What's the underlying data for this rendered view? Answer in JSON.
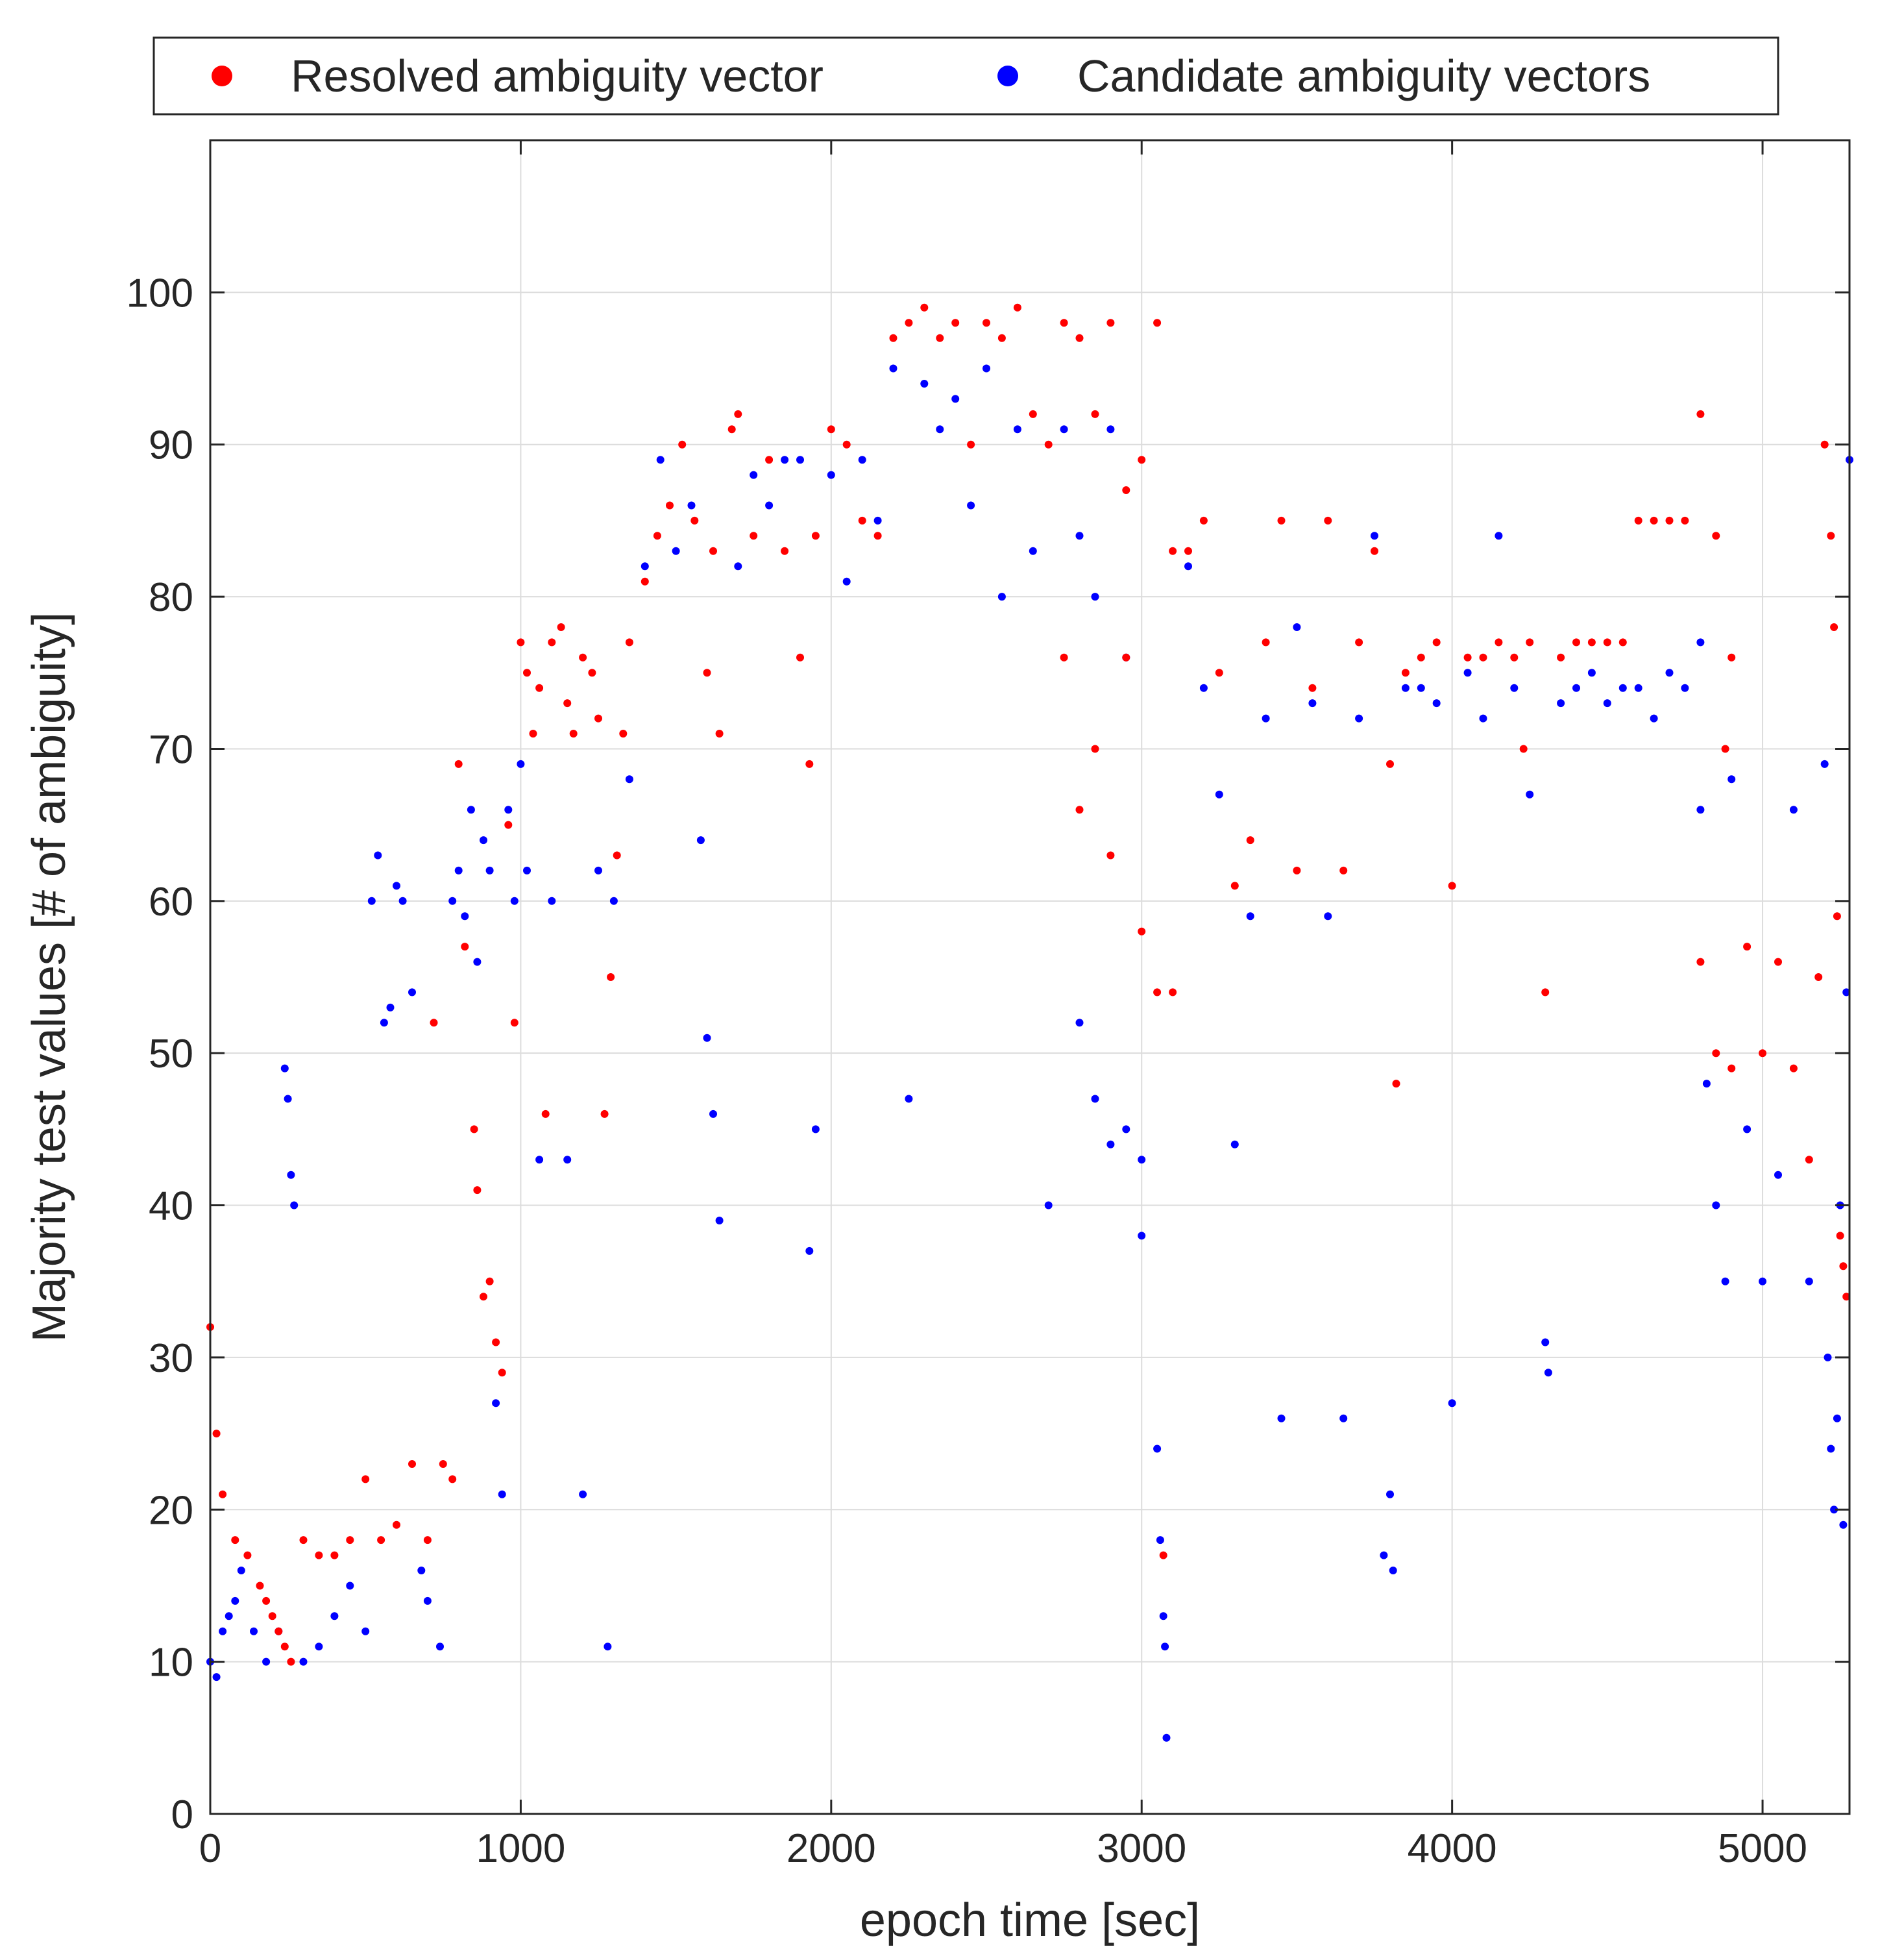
{
  "chart_data": {
    "type": "scatter",
    "title": "",
    "xlabel": "epoch time [sec]",
    "ylabel": "Majority test values [# of ambiguity]",
    "xlim": [
      0,
      5280
    ],
    "ylim": [
      0,
      110
    ],
    "xticks": [
      0,
      1000,
      2000,
      3000,
      4000,
      5000
    ],
    "yticks": [
      0,
      10,
      20,
      30,
      40,
      50,
      60,
      70,
      80,
      90,
      100
    ],
    "grid": true,
    "legend": {
      "position": "top-outside",
      "orientation": "horizontal"
    },
    "colors": {
      "resolved": "#ff0000",
      "candidate": "#0000ff",
      "grid": "#dcdcdc",
      "axis": "#262626"
    },
    "series": [
      {
        "name": "Resolved ambiguity vector",
        "color": "#ff0000",
        "points": [
          [
            0,
            32
          ],
          [
            20,
            25
          ],
          [
            40,
            21
          ],
          [
            80,
            18
          ],
          [
            120,
            17
          ],
          [
            160,
            15
          ],
          [
            180,
            14
          ],
          [
            200,
            13
          ],
          [
            220,
            12
          ],
          [
            240,
            11
          ],
          [
            260,
            10
          ],
          [
            300,
            18
          ],
          [
            350,
            17
          ],
          [
            400,
            17
          ],
          [
            450,
            18
          ],
          [
            500,
            22
          ],
          [
            550,
            18
          ],
          [
            600,
            19
          ],
          [
            650,
            23
          ],
          [
            700,
            18
          ],
          [
            720,
            52
          ],
          [
            750,
            23
          ],
          [
            780,
            22
          ],
          [
            800,
            69
          ],
          [
            820,
            57
          ],
          [
            850,
            45
          ],
          [
            860,
            41
          ],
          [
            880,
            34
          ],
          [
            900,
            35
          ],
          [
            920,
            31
          ],
          [
            940,
            29
          ],
          [
            960,
            65
          ],
          [
            980,
            52
          ],
          [
            1000,
            77
          ],
          [
            1020,
            75
          ],
          [
            1040,
            71
          ],
          [
            1060,
            74
          ],
          [
            1080,
            46
          ],
          [
            1100,
            77
          ],
          [
            1130,
            78
          ],
          [
            1150,
            73
          ],
          [
            1170,
            71
          ],
          [
            1200,
            76
          ],
          [
            1230,
            75
          ],
          [
            1250,
            72
          ],
          [
            1270,
            46
          ],
          [
            1290,
            55
          ],
          [
            1310,
            63
          ],
          [
            1330,
            71
          ],
          [
            1350,
            77
          ],
          [
            1400,
            81
          ],
          [
            1440,
            84
          ],
          [
            1480,
            86
          ],
          [
            1520,
            90
          ],
          [
            1560,
            85
          ],
          [
            1600,
            75
          ],
          [
            1620,
            83
          ],
          [
            1640,
            71
          ],
          [
            1680,
            91
          ],
          [
            1700,
            92
          ],
          [
            1750,
            84
          ],
          [
            1800,
            89
          ],
          [
            1850,
            83
          ],
          [
            1900,
            76
          ],
          [
            1930,
            69
          ],
          [
            1950,
            84
          ],
          [
            2000,
            91
          ],
          [
            2050,
            90
          ],
          [
            2100,
            85
          ],
          [
            2150,
            84
          ],
          [
            2200,
            97
          ],
          [
            2250,
            98
          ],
          [
            2300,
            99
          ],
          [
            2350,
            97
          ],
          [
            2400,
            98
          ],
          [
            2450,
            90
          ],
          [
            2500,
            98
          ],
          [
            2550,
            97
          ],
          [
            2600,
            99
          ],
          [
            2650,
            92
          ],
          [
            2700,
            90
          ],
          [
            2750,
            98
          ],
          [
            2800,
            97
          ],
          [
            2850,
            92
          ],
          [
            2900,
            98
          ],
          [
            2950,
            87
          ],
          [
            3000,
            89
          ],
          [
            3050,
            98
          ],
          [
            3100,
            83
          ],
          [
            2750,
            76
          ],
          [
            2800,
            66
          ],
          [
            2850,
            70
          ],
          [
            2900,
            63
          ],
          [
            2950,
            76
          ],
          [
            3000,
            58
          ],
          [
            3050,
            54
          ],
          [
            3100,
            54
          ],
          [
            3070,
            17
          ],
          [
            3150,
            83
          ],
          [
            3200,
            85
          ],
          [
            3250,
            75
          ],
          [
            3300,
            61
          ],
          [
            3350,
            64
          ],
          [
            3400,
            77
          ],
          [
            3450,
            85
          ],
          [
            3500,
            62
          ],
          [
            3550,
            74
          ],
          [
            3600,
            85
          ],
          [
            3650,
            62
          ],
          [
            3700,
            77
          ],
          [
            3750,
            83
          ],
          [
            3800,
            69
          ],
          [
            3820,
            48
          ],
          [
            3850,
            75
          ],
          [
            3900,
            76
          ],
          [
            3950,
            77
          ],
          [
            4000,
            61
          ],
          [
            4050,
            76
          ],
          [
            4100,
            76
          ],
          [
            4150,
            77
          ],
          [
            4200,
            76
          ],
          [
            4230,
            70
          ],
          [
            4250,
            77
          ],
          [
            4300,
            54
          ],
          [
            4350,
            76
          ],
          [
            4400,
            77
          ],
          [
            4450,
            77
          ],
          [
            4500,
            77
          ],
          [
            4550,
            77
          ],
          [
            4600,
            85
          ],
          [
            4650,
            85
          ],
          [
            4700,
            85
          ],
          [
            4750,
            85
          ],
          [
            4800,
            92
          ],
          [
            4850,
            84
          ],
          [
            4900,
            76
          ],
          [
            4800,
            56
          ],
          [
            4850,
            50
          ],
          [
            4880,
            70
          ],
          [
            4900,
            49
          ],
          [
            4950,
            57
          ],
          [
            5000,
            50
          ],
          [
            5050,
            56
          ],
          [
            5100,
            49
          ],
          [
            5150,
            43
          ],
          [
            5180,
            55
          ],
          [
            5200,
            90
          ],
          [
            5220,
            84
          ],
          [
            5230,
            78
          ],
          [
            5240,
            59
          ],
          [
            5250,
            38
          ],
          [
            5260,
            36
          ],
          [
            5270,
            34
          ]
        ]
      },
      {
        "name": "Candidate ambiguity vectors",
        "color": "#0000ff",
        "points": [
          [
            0,
            10
          ],
          [
            20,
            9
          ],
          [
            40,
            12
          ],
          [
            60,
            13
          ],
          [
            80,
            14
          ],
          [
            100,
            16
          ],
          [
            140,
            12
          ],
          [
            180,
            10
          ],
          [
            220,
            12
          ],
          [
            240,
            49
          ],
          [
            250,
            47
          ],
          [
            260,
            42
          ],
          [
            270,
            40
          ],
          [
            300,
            10
          ],
          [
            350,
            11
          ],
          [
            400,
            13
          ],
          [
            450,
            15
          ],
          [
            500,
            12
          ],
          [
            520,
            60
          ],
          [
            540,
            63
          ],
          [
            560,
            52
          ],
          [
            580,
            53
          ],
          [
            600,
            61
          ],
          [
            620,
            60
          ],
          [
            650,
            54
          ],
          [
            680,
            16
          ],
          [
            700,
            14
          ],
          [
            740,
            11
          ],
          [
            780,
            60
          ],
          [
            800,
            62
          ],
          [
            820,
            59
          ],
          [
            840,
            66
          ],
          [
            860,
            56
          ],
          [
            880,
            64
          ],
          [
            900,
            62
          ],
          [
            920,
            27
          ],
          [
            940,
            21
          ],
          [
            960,
            66
          ],
          [
            980,
            60
          ],
          [
            1000,
            69
          ],
          [
            1020,
            62
          ],
          [
            1060,
            43
          ],
          [
            1100,
            60
          ],
          [
            1150,
            43
          ],
          [
            1200,
            21
          ],
          [
            1250,
            62
          ],
          [
            1280,
            11
          ],
          [
            1300,
            60
          ],
          [
            1350,
            68
          ],
          [
            1400,
            82
          ],
          [
            1450,
            89
          ],
          [
            1500,
            83
          ],
          [
            1550,
            86
          ],
          [
            1580,
            64
          ],
          [
            1600,
            51
          ],
          [
            1620,
            46
          ],
          [
            1640,
            39
          ],
          [
            1700,
            82
          ],
          [
            1750,
            88
          ],
          [
            1800,
            86
          ],
          [
            1850,
            89
          ],
          [
            1900,
            89
          ],
          [
            1930,
            37
          ],
          [
            1950,
            45
          ],
          [
            2000,
            88
          ],
          [
            2050,
            81
          ],
          [
            2100,
            89
          ],
          [
            2150,
            85
          ],
          [
            2200,
            95
          ],
          [
            2250,
            47
          ],
          [
            2300,
            94
          ],
          [
            2350,
            91
          ],
          [
            2400,
            93
          ],
          [
            2450,
            86
          ],
          [
            2500,
            95
          ],
          [
            2550,
            80
          ],
          [
            2600,
            91
          ],
          [
            2650,
            83
          ],
          [
            2700,
            40
          ],
          [
            2750,
            91
          ],
          [
            2800,
            84
          ],
          [
            2850,
            80
          ],
          [
            2900,
            91
          ],
          [
            2950,
            76
          ],
          [
            3000,
            38
          ],
          [
            2800,
            52
          ],
          [
            2850,
            47
          ],
          [
            2900,
            44
          ],
          [
            2950,
            45
          ],
          [
            3000,
            43
          ],
          [
            3050,
            24
          ],
          [
            3060,
            18
          ],
          [
            3070,
            13
          ],
          [
            3075,
            11
          ],
          [
            3080,
            5
          ],
          [
            3150,
            82
          ],
          [
            3200,
            74
          ],
          [
            3250,
            67
          ],
          [
            3300,
            44
          ],
          [
            3350,
            59
          ],
          [
            3400,
            72
          ],
          [
            3450,
            26
          ],
          [
            3500,
            78
          ],
          [
            3550,
            73
          ],
          [
            3600,
            59
          ],
          [
            3650,
            26
          ],
          [
            3700,
            72
          ],
          [
            3750,
            84
          ],
          [
            3780,
            17
          ],
          [
            3800,
            21
          ],
          [
            3810,
            16
          ],
          [
            3850,
            74
          ],
          [
            3900,
            74
          ],
          [
            3950,
            73
          ],
          [
            4000,
            27
          ],
          [
            4050,
            75
          ],
          [
            4100,
            72
          ],
          [
            4150,
            84
          ],
          [
            4200,
            74
          ],
          [
            4250,
            67
          ],
          [
            4300,
            31
          ],
          [
            4310,
            29
          ],
          [
            4350,
            73
          ],
          [
            4400,
            74
          ],
          [
            4450,
            75
          ],
          [
            4500,
            73
          ],
          [
            4550,
            74
          ],
          [
            4600,
            74
          ],
          [
            4650,
            72
          ],
          [
            4700,
            75
          ],
          [
            4750,
            74
          ],
          [
            4800,
            77
          ],
          [
            4800,
            66
          ],
          [
            4820,
            48
          ],
          [
            4850,
            40
          ],
          [
            4880,
            35
          ],
          [
            4900,
            68
          ],
          [
            4950,
            45
          ],
          [
            5000,
            35
          ],
          [
            5050,
            42
          ],
          [
            5100,
            66
          ],
          [
            5150,
            35
          ],
          [
            5200,
            69
          ],
          [
            5210,
            30
          ],
          [
            5220,
            24
          ],
          [
            5230,
            20
          ],
          [
            5240,
            26
          ],
          [
            5250,
            40
          ],
          [
            5260,
            19
          ],
          [
            5270,
            54
          ],
          [
            5280,
            89
          ]
        ]
      }
    ]
  }
}
